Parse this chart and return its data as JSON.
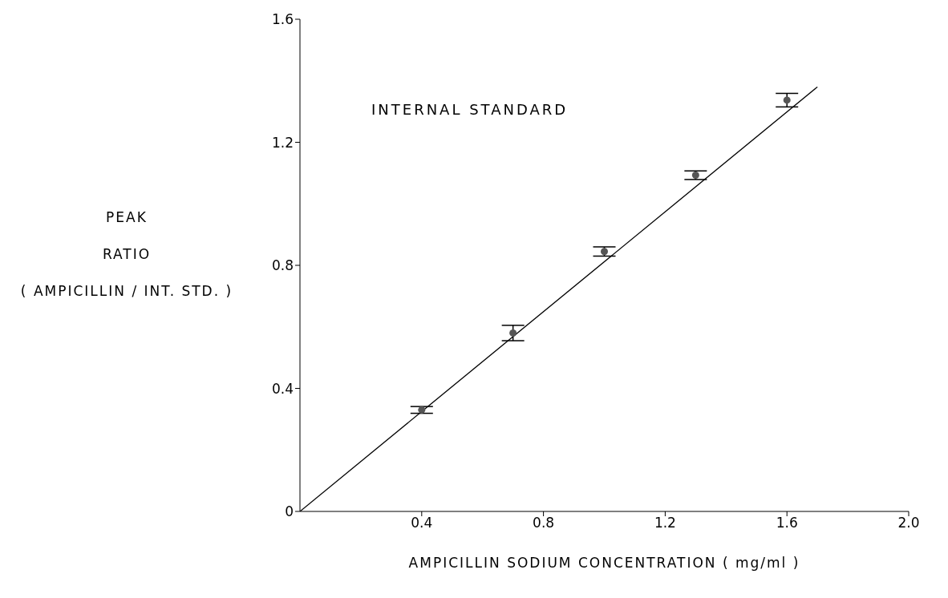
{
  "chart_data": {
    "type": "scatter",
    "xlabel": "AMPICILLIN SODIUM CONCENTRATION ( mg/ml )",
    "ylabel": "PEAK\nRATIO\n( AMPICILLIN / INT. STD. )",
    "annotations": [
      "INTERNAL STANDARD"
    ],
    "x": [
      0.4,
      0.7,
      1.0,
      1.3,
      1.6
    ],
    "series": [
      {
        "marker": "circle",
        "color": "#555555",
        "values": [
          0.33,
          0.58,
          0.845,
          1.093,
          1.337
        ],
        "errors": [
          0.011,
          0.025,
          0.015,
          0.014,
          0.022
        ]
      },
      {
        "type": "line",
        "color": "#000000",
        "x": [
          0,
          1.7
        ],
        "values": [
          0,
          1.38
        ]
      }
    ],
    "xlim": [
      0,
      2.0
    ],
    "ylim": [
      0,
      1.6
    ],
    "xticks": [
      0.4,
      0.8,
      1.2,
      1.6,
      {
        "value": 2.0,
        "label": "2.0"
      }
    ],
    "yticks": [
      0,
      0.4,
      0.8,
      1.2,
      1.6
    ],
    "line_style": "solid",
    "grid": false,
    "legend": false
  }
}
